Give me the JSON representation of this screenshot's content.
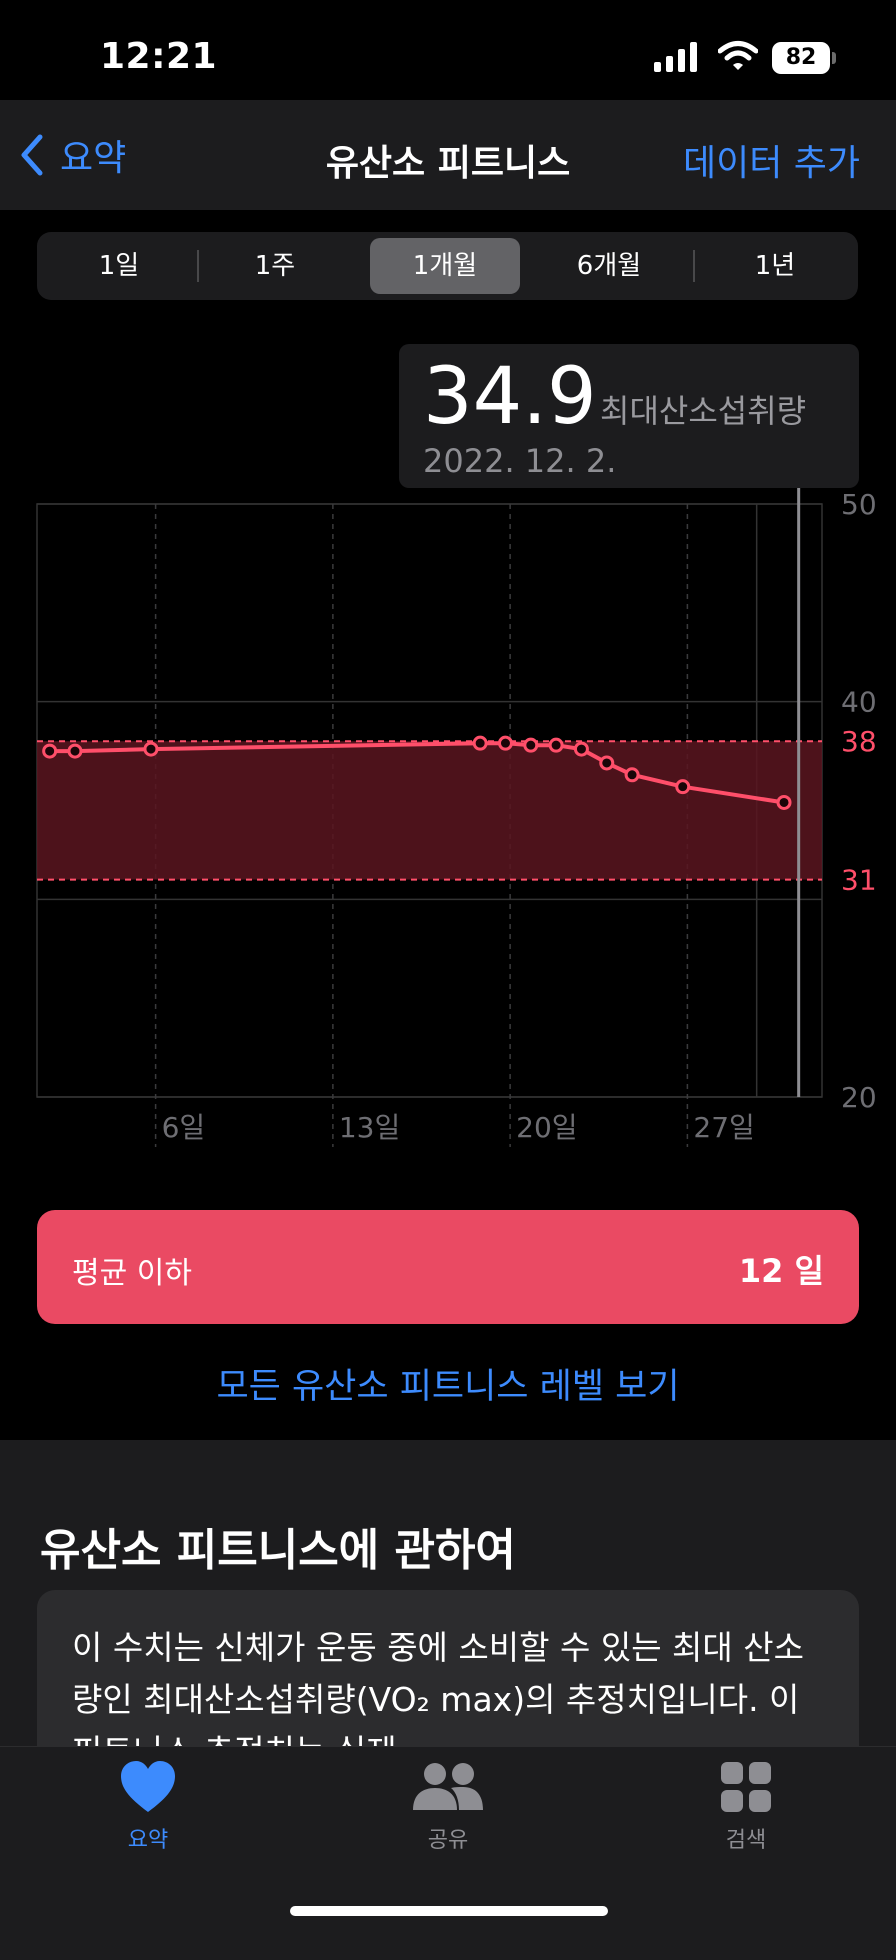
{
  "status_bar": {
    "time": "12:21",
    "battery": "82"
  },
  "nav": {
    "back_label": "요약",
    "title": "유산소 피트니스",
    "action_label": "데이터 추가"
  },
  "segments": [
    {
      "label": "1일",
      "active": false
    },
    {
      "label": "1주",
      "active": false
    },
    {
      "label": "1개월",
      "active": true
    },
    {
      "label": "6개월",
      "active": false
    },
    {
      "label": "1년",
      "active": false
    }
  ],
  "tooltip": {
    "value": "34.9",
    "unit": "최대산소섭취량",
    "date": "2022. 12. 2."
  },
  "colors": {
    "accent": "#3d8bfd",
    "range": "#ea4a63",
    "line": "#ff4f6a",
    "range_fill": "#5a1520"
  },
  "chart_data": {
    "type": "line",
    "ylim": [
      20,
      50
    ],
    "y_ticks": [
      50,
      40,
      20
    ],
    "range_band": {
      "low": 31,
      "high": 38,
      "low_label": "31",
      "high_label": "38"
    },
    "x_day_range": [
      1,
      31
    ],
    "x_ticks": [
      {
        "day": 6,
        "label": "6일"
      },
      {
        "day": 13,
        "label": "13일"
      },
      {
        "day": 20,
        "label": "20일"
      },
      {
        "day": 27,
        "label": "27일"
      }
    ],
    "selected_day": 31,
    "series": [
      {
        "points": [
          {
            "x": 1.5,
            "y": 37.5
          },
          {
            "x": 2.5,
            "y": 37.5
          },
          {
            "x": 5.5,
            "y": 37.6
          },
          {
            "x": 18.5,
            "y": 37.9
          },
          {
            "x": 19.5,
            "y": 37.9
          },
          {
            "x": 20.5,
            "y": 37.8
          },
          {
            "x": 21.5,
            "y": 37.8
          },
          {
            "x": 22.5,
            "y": 37.6
          },
          {
            "x": 23.5,
            "y": 36.9
          },
          {
            "x": 24.5,
            "y": 36.3
          },
          {
            "x": 26.5,
            "y": 35.7
          },
          {
            "x": 30.5,
            "y": 34.9
          }
        ]
      }
    ]
  },
  "range_button": {
    "label": "평균 이하",
    "count": "12 일"
  },
  "all_levels_link": "모든 유산소 피트니스 레벨 보기",
  "about": {
    "title": "유산소 피트니스에 관하여",
    "text": "이 수치는 신체가 운동 중에 소비할 수 있는 최대 산소량인 최대산소섭취량(VO₂ max)의 추정치입니다. 이 피트니스 추정치는 실제"
  },
  "tabs": [
    {
      "label": "요약",
      "icon": "heart-icon",
      "active": true
    },
    {
      "label": "공유",
      "icon": "people-icon",
      "active": false
    },
    {
      "label": "검색",
      "icon": "grid-icon",
      "active": false
    }
  ]
}
